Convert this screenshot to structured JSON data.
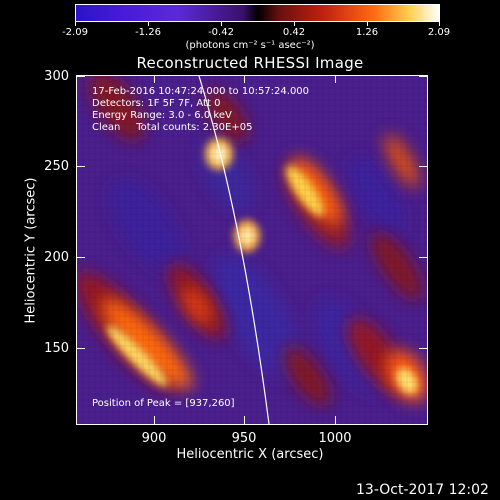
{
  "colorbar": {
    "tick_labels": [
      "-2.09",
      "-1.26",
      "-0.42",
      "0.42",
      "1.26",
      "2.09"
    ],
    "unit": "(photons cm⁻² s⁻¹ asec⁻²)"
  },
  "title": "Reconstructed RHESSI Image",
  "overlay": {
    "time_range": "17-Feb-2016 10:47:24.000 to 10:57:24.000",
    "detectors": "Detectors: 1F 5F 7F, Att 0",
    "energy": "Energy Range: 3.0 - 6.0 keV",
    "clean": "Clean     Total counts: 2.30E+05",
    "peak": "Position of Peak = [937,260]"
  },
  "axes": {
    "ylabel": "Heliocentric Y (arcsec)",
    "xlabel": "Heliocentric X (arcsec)",
    "yticks": [
      "300",
      "250",
      "200",
      "150"
    ],
    "xticks": [
      "900",
      "950",
      "1000"
    ]
  },
  "footer_date": "13-Oct-2017 12:02",
  "colors": {
    "background": "#000000",
    "foreground": "#ffffff",
    "map_base": "#4a1e8c"
  }
}
